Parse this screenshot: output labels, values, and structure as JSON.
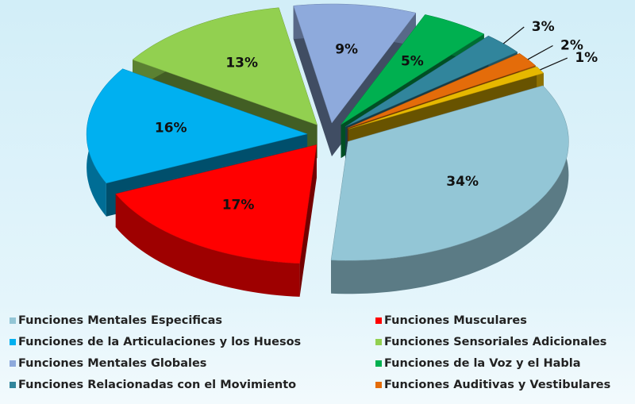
{
  "chart_data": {
    "type": "pie",
    "categories": [
      "Funciones Mentales Especificas",
      "Funciones Musculares",
      "Funciones de la Articulaciones y los Huesos",
      "Funciones Sensoriales Adicionales",
      "Funciones Mentales Globales",
      "Funciones de la Voz y el Habla",
      "Funciones Relacionadas con el Movimiento",
      "Funciones Auditivas y Vestibulares",
      null
    ],
    "values": [
      34,
      17,
      16,
      13,
      9,
      5,
      3,
      2,
      1
    ],
    "value_labels": [
      "34%",
      "17%",
      "16%",
      "13%",
      "9%",
      "5%",
      "3%",
      "2%",
      "1%"
    ],
    "colors": [
      "#93c6d6",
      "#ff0000",
      "#00b0f0",
      "#92d050",
      "#8eaadc",
      "#00b050",
      "#31859c",
      "#e46c0a",
      "#e6b800"
    ],
    "legend": "bottom"
  }
}
